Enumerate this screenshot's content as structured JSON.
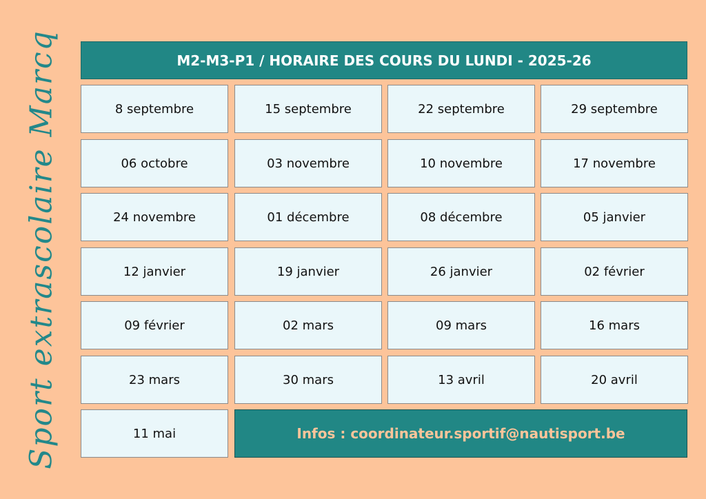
{
  "side_title": "Sport extrascolaire Marcq",
  "header": {
    "title": "M2-M3-P1 / HORAIRE DES COURS DU LUNDI - 2025-26"
  },
  "dates": [
    "8 septembre",
    "15 septembre",
    "22 septembre",
    "29 septembre",
    "06 octobre",
    "03 novembre",
    "10 novembre",
    "17 novembre",
    "24 novembre",
    "01 décembre",
    "08 décembre",
    "05 janvier",
    "12 janvier",
    "19 janvier",
    "26 janvier",
    "02 février",
    "09 février",
    "02 mars",
    "09 mars",
    "16 mars",
    "23 mars",
    "30 mars",
    "13 avril",
    "20 avril",
    "11 mai"
  ],
  "info": "Infos : coordinateur.sportif@nautisport.be",
  "colors": {
    "background": "#fdc49a",
    "accent": "#218785",
    "cell": "#eaf7fa"
  }
}
